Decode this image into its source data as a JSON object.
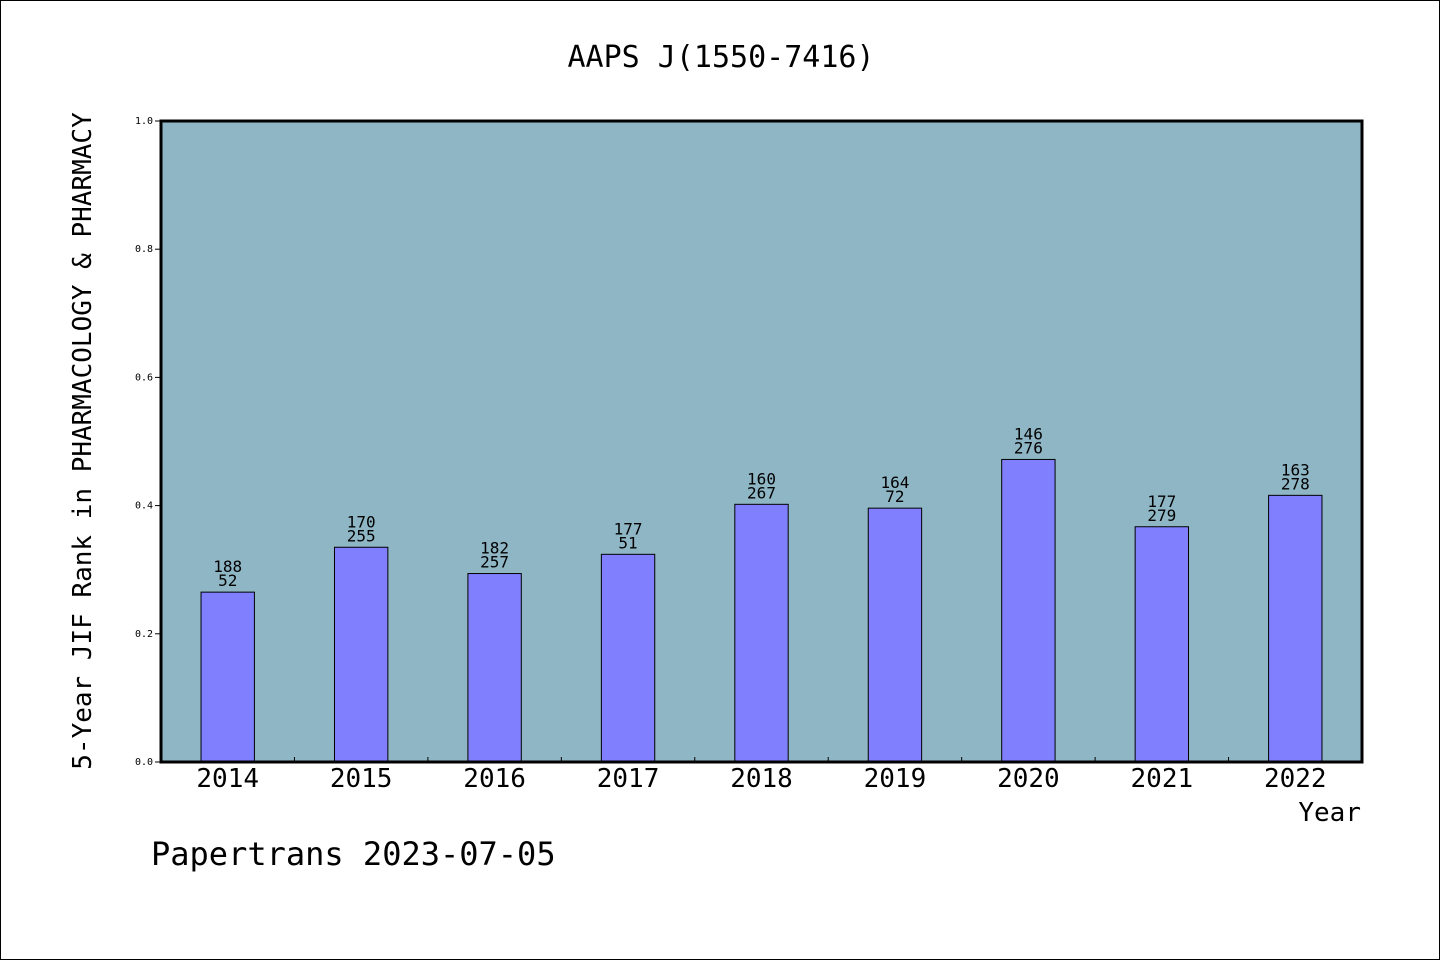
{
  "chart_data": {
    "type": "bar",
    "title": "AAPS J(1550-7416)",
    "xlabel": "Year",
    "ylabel": "5-Year JIF Rank in PHARMACOLOGY & PHARMACY",
    "ylim": [
      0,
      1.0
    ],
    "yticks": [
      "0.0",
      "0.2",
      "0.4",
      "0.6",
      "0.8",
      "1.0"
    ],
    "categories": [
      "2014",
      "2015",
      "2016",
      "2017",
      "2018",
      "2019",
      "2020",
      "2021",
      "2022"
    ],
    "values": [
      0.265,
      0.335,
      0.294,
      0.324,
      0.402,
      0.396,
      0.472,
      0.367,
      0.416
    ],
    "labels_top": [
      "188",
      "170",
      "182",
      "177",
      "160",
      "164",
      "146",
      "177",
      "163"
    ],
    "labels_bottom": [
      "52",
      "255",
      "257",
      "51",
      "267",
      "72",
      "276",
      "279",
      "278"
    ],
    "grid": false,
    "plot_background": "#8fb6c5",
    "bar_color": "#8080ff"
  },
  "footer": "Papertrans 2023-07-05"
}
